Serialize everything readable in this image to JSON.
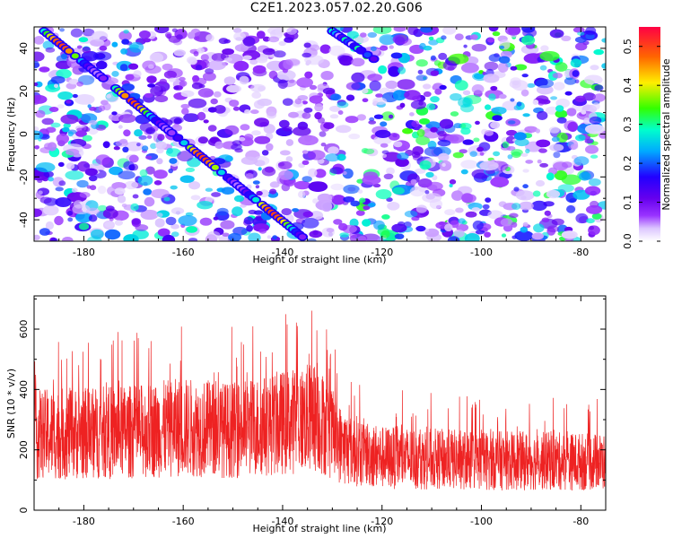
{
  "title": "C2E1.2023.057.02.20.G06",
  "chart_data": [
    {
      "type": "heatmap",
      "xlabel": "Height of straight line (km)",
      "ylabel": "Frequency (Hz)",
      "xlim": [
        -190,
        -75
      ],
      "ylim": [
        -50,
        50
      ],
      "x_ticks": [
        -180,
        -160,
        -140,
        -120,
        -100,
        -80
      ],
      "y_ticks": [
        -40,
        -20,
        0,
        20,
        40
      ],
      "colorbar": {
        "label": "Normalized spectral amplitude",
        "range": [
          0,
          0.55
        ],
        "ticks": [
          "0.0",
          "0.1",
          "0.2",
          "0.3",
          "0.4",
          "0.5"
        ],
        "colors": [
          "#ffffff",
          "#cc99ff",
          "#7700ee",
          "#2200ff",
          "#00aaff",
          "#00ffcc",
          "#33ff00",
          "#ffee00",
          "#ff6600",
          "#ff0044"
        ]
      },
      "tracks": [
        {
          "x_start": -188,
          "y_start": 48,
          "x_end": -136,
          "y_end": -48,
          "peak_amplitude": 0.5
        },
        {
          "x_start": -130,
          "y_start": 48,
          "x_end": -121,
          "y_end": 34,
          "peak_amplitude": 0.3
        }
      ]
    },
    {
      "type": "line",
      "xlabel": "Height of straight line (km)",
      "ylabel": "SNR (10 * v/v)",
      "xlim": [
        -190,
        -75
      ],
      "ylim": [
        0,
        710
      ],
      "x_ticks": [
        -180,
        -160,
        -140,
        -120,
        -100,
        -80
      ],
      "y_ticks": [
        0,
        200,
        400,
        600
      ],
      "color": "#ee2222",
      "mean_profile": [
        {
          "x": -190,
          "y": 250
        },
        {
          "x": -170,
          "y": 260
        },
        {
          "x": -160,
          "y": 275
        },
        {
          "x": -150,
          "y": 265
        },
        {
          "x": -140,
          "y": 290
        },
        {
          "x": -133,
          "y": 310
        },
        {
          "x": -128,
          "y": 210
        },
        {
          "x": -120,
          "y": 175
        },
        {
          "x": -100,
          "y": 165
        },
        {
          "x": -75,
          "y": 160
        }
      ],
      "max_value": 710
    }
  ]
}
